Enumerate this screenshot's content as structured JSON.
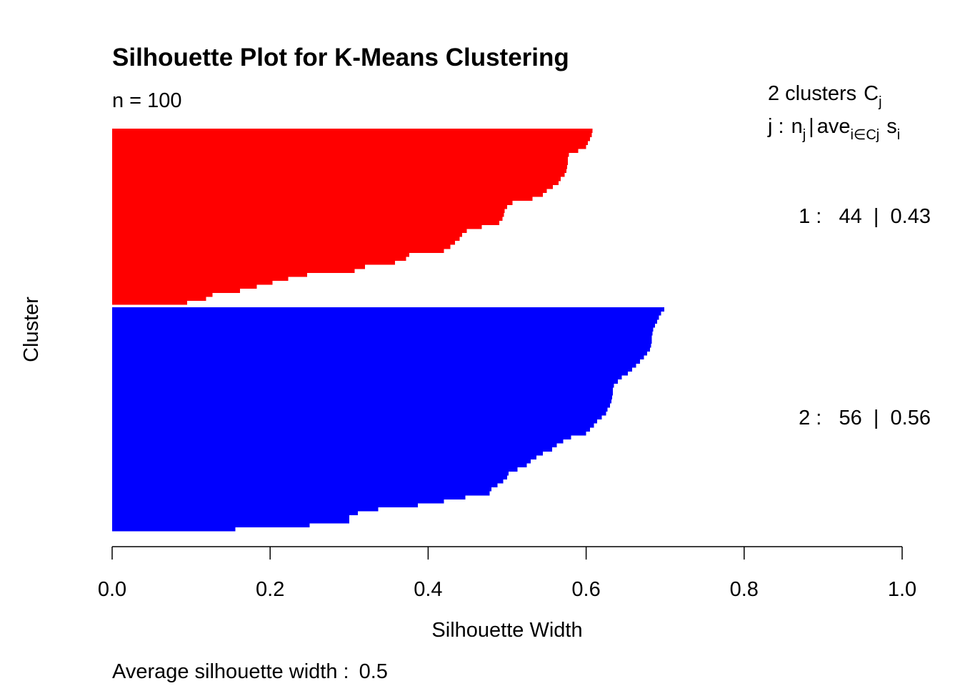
{
  "chart_data": {
    "type": "bar",
    "orientation": "horizontal",
    "title": "Silhouette Plot for K-Means Clustering",
    "subtitle": "n = 100",
    "xlabel": "Silhouette Width",
    "ylabel": "Cluster",
    "xlim": [
      0,
      1
    ],
    "x_ticks": [
      "0.0",
      "0.2",
      "0.4",
      "0.6",
      "0.8",
      "1.0"
    ],
    "footer": {
      "label": "Average silhouette width :",
      "value": "0.5"
    },
    "legend": {
      "count_text": "2  clusters",
      "symbol_base": "C",
      "symbol_sub": "j",
      "header_j": "j :",
      "header_n": "n",
      "header_n_sub": "j",
      "header_sep": "|",
      "header_ave": "ave",
      "header_ave_sub": "i∈Cj",
      "header_s": "s",
      "header_s_sub": "i"
    },
    "series": [
      {
        "cluster": "1",
        "size": "44",
        "avg_width": "0.43",
        "label_text": "1 :   44  |  0.43",
        "color": "#FF0000",
        "values": [
          0.608,
          0.607,
          0.605,
          0.602,
          0.6,
          0.59,
          0.578,
          0.577,
          0.577,
          0.576,
          0.575,
          0.573,
          0.568,
          0.565,
          0.558,
          0.55,
          0.545,
          0.532,
          0.507,
          0.5,
          0.497,
          0.496,
          0.494,
          0.49,
          0.468,
          0.449,
          0.443,
          0.44,
          0.434,
          0.428,
          0.42,
          0.376,
          0.372,
          0.358,
          0.32,
          0.307,
          0.247,
          0.223,
          0.203,
          0.183,
          0.162,
          0.127,
          0.119,
          0.095
        ]
      },
      {
        "cluster": "2",
        "size": "56",
        "avg_width": "0.56",
        "label_text": "2 :   56  |  0.56",
        "color": "#0000FF",
        "values": [
          0.699,
          0.695,
          0.692,
          0.69,
          0.687,
          0.685,
          0.684,
          0.683,
          0.683,
          0.682,
          0.681,
          0.677,
          0.673,
          0.668,
          0.663,
          0.658,
          0.653,
          0.645,
          0.64,
          0.635,
          0.634,
          0.634,
          0.633,
          0.632,
          0.63,
          0.627,
          0.625,
          0.62,
          0.614,
          0.61,
          0.605,
          0.6,
          0.581,
          0.571,
          0.563,
          0.557,
          0.545,
          0.537,
          0.53,
          0.525,
          0.513,
          0.502,
          0.5,
          0.495,
          0.488,
          0.48,
          0.478,
          0.447,
          0.42,
          0.387,
          0.337,
          0.311,
          0.3,
          0.3,
          0.25,
          0.156
        ]
      }
    ]
  }
}
